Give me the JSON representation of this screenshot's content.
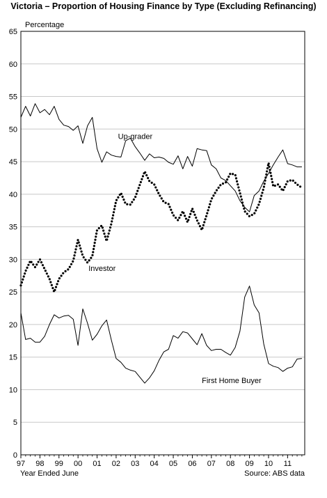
{
  "chart_data": {
    "type": "line",
    "title": "Victoria – Proportion of Housing Finance by Type (Excluding Refinancing)",
    "ylabel": "Percentage",
    "xlabel": "Year Ended June",
    "source": "Source: ABS data",
    "ylim": [
      0,
      65
    ],
    "yticks": [
      0,
      5,
      10,
      15,
      20,
      25,
      30,
      35,
      40,
      45,
      50,
      55,
      60,
      65
    ],
    "xlim": [
      1997,
      2011.9
    ],
    "xticks": [
      {
        "x": 1997,
        "label": "97"
      },
      {
        "x": 1998,
        "label": "98"
      },
      {
        "x": 1999,
        "label": "99"
      },
      {
        "x": 2000,
        "label": "00"
      },
      {
        "x": 2001,
        "label": "01"
      },
      {
        "x": 2002,
        "label": "02"
      },
      {
        "x": 2003,
        "label": "03"
      },
      {
        "x": 2004,
        "label": "04"
      },
      {
        "x": 2005,
        "label": "05"
      },
      {
        "x": 2006,
        "label": "06"
      },
      {
        "x": 2007,
        "label": "07"
      },
      {
        "x": 2008,
        "label": "08"
      },
      {
        "x": 2009,
        "label": "09"
      },
      {
        "x": 2010,
        "label": "10"
      },
      {
        "x": 2011,
        "label": "11"
      }
    ],
    "grid": "horizontal",
    "series": [
      {
        "name": "Up-grader",
        "style": "solid",
        "color": "#000000",
        "x": [
          1997.0,
          1997.25,
          1997.5,
          1997.75,
          1998.0,
          1998.25,
          1998.5,
          1998.75,
          1999.0,
          1999.25,
          1999.5,
          1999.75,
          2000.0,
          2000.25,
          2000.5,
          2000.75,
          2001.0,
          2001.25,
          2001.5,
          2001.75,
          2002.0,
          2002.25,
          2002.5,
          2002.75,
          2003.0,
          2003.25,
          2003.5,
          2003.75,
          2004.0,
          2004.25,
          2004.5,
          2004.75,
          2005.0,
          2005.25,
          2005.5,
          2005.75,
          2006.0,
          2006.25,
          2006.5,
          2006.75,
          2007.0,
          2007.25,
          2007.5,
          2007.75,
          2008.0,
          2008.25,
          2008.5,
          2008.75,
          2009.0,
          2009.25,
          2009.5,
          2009.75,
          2010.0,
          2010.25,
          2010.5,
          2010.75,
          2011.0,
          2011.25,
          2011.5,
          2011.75
        ],
        "values": [
          51.8,
          53.5,
          52.0,
          53.9,
          52.5,
          53.0,
          52.2,
          53.5,
          51.5,
          50.6,
          50.4,
          49.8,
          50.5,
          47.8,
          50.5,
          51.8,
          47.0,
          44.9,
          46.5,
          46.0,
          45.8,
          45.7,
          48.2,
          48.6,
          47.3,
          46.3,
          45.2,
          46.2,
          45.6,
          45.7,
          45.5,
          44.9,
          44.6,
          45.9,
          43.9,
          45.8,
          44.3,
          47.0,
          46.8,
          46.7,
          44.5,
          43.9,
          42.5,
          42.1,
          41.3,
          40.5,
          39.0,
          38.0,
          37.3,
          39.8,
          40.5,
          42.0,
          43.2,
          44.5,
          45.7,
          46.8,
          44.7,
          44.5,
          44.2,
          44.2
        ]
      },
      {
        "name": "Investor",
        "style": "dotted",
        "color": "#000000",
        "x": [
          1997.0,
          1997.25,
          1997.5,
          1997.75,
          1998.0,
          1998.25,
          1998.5,
          1998.75,
          1999.0,
          1999.25,
          1999.5,
          1999.75,
          2000.0,
          2000.25,
          2000.5,
          2000.75,
          2001.0,
          2001.25,
          2001.5,
          2001.75,
          2002.0,
          2002.25,
          2002.5,
          2002.75,
          2003.0,
          2003.25,
          2003.5,
          2003.75,
          2004.0,
          2004.25,
          2004.5,
          2004.75,
          2005.0,
          2005.25,
          2005.5,
          2005.75,
          2006.0,
          2006.25,
          2006.5,
          2006.75,
          2007.0,
          2007.25,
          2007.5,
          2007.75,
          2008.0,
          2008.25,
          2008.5,
          2008.75,
          2009.0,
          2009.25,
          2009.5,
          2009.75,
          2010.0,
          2010.25,
          2010.5,
          2010.75,
          2011.0,
          2011.25,
          2011.5,
          2011.75
        ],
        "values": [
          26.0,
          28.2,
          29.8,
          28.8,
          30.0,
          28.5,
          27.0,
          25.0,
          27.0,
          28.0,
          28.5,
          29.8,
          33.0,
          30.5,
          29.5,
          30.5,
          34.5,
          35.2,
          32.8,
          35.5,
          39.0,
          40.2,
          38.5,
          38.4,
          39.5,
          41.5,
          43.5,
          42.0,
          41.5,
          40.0,
          38.8,
          38.5,
          36.8,
          36.0,
          37.4,
          35.7,
          37.8,
          36.0,
          34.5,
          36.8,
          39.2,
          40.5,
          41.5,
          41.8,
          43.2,
          43.0,
          40.2,
          37.4,
          36.6,
          37.0,
          38.5,
          41.0,
          44.8,
          41.2,
          41.5,
          40.5,
          42.0,
          42.2,
          41.5,
          41.0
        ]
      },
      {
        "name": "First Home Buyer",
        "style": "solid",
        "color": "#000000",
        "x": [
          1997.0,
          1997.25,
          1997.5,
          1997.75,
          1998.0,
          1998.25,
          1998.5,
          1998.75,
          1999.0,
          1999.25,
          1999.5,
          1999.75,
          2000.0,
          2000.25,
          2000.5,
          2000.75,
          2001.0,
          2001.25,
          2001.5,
          2001.75,
          2002.0,
          2002.25,
          2002.5,
          2002.75,
          2003.0,
          2003.25,
          2003.5,
          2003.75,
          2004.0,
          2004.25,
          2004.5,
          2004.75,
          2005.0,
          2005.25,
          2005.5,
          2005.75,
          2006.0,
          2006.25,
          2006.5,
          2006.75,
          2007.0,
          2007.25,
          2007.5,
          2007.75,
          2008.0,
          2008.25,
          2008.5,
          2008.75,
          2009.0,
          2009.25,
          2009.5,
          2009.75,
          2010.0,
          2010.25,
          2010.5,
          2010.75,
          2011.0,
          2011.25,
          2011.5,
          2011.75
        ],
        "values": [
          21.8,
          17.7,
          17.9,
          17.3,
          17.3,
          18.2,
          20.0,
          21.5,
          21.0,
          21.3,
          21.4,
          20.8,
          16.8,
          22.4,
          20.2,
          17.6,
          18.5,
          19.8,
          20.7,
          17.6,
          14.8,
          14.2,
          13.3,
          13.0,
          12.8,
          11.9,
          11.0,
          11.8,
          12.9,
          14.5,
          15.8,
          16.2,
          18.3,
          17.9,
          18.9,
          18.7,
          17.8,
          16.9,
          18.6,
          16.8,
          16.0,
          16.2,
          16.2,
          15.7,
          15.3,
          16.5,
          19.0,
          24.2,
          25.9,
          23.0,
          21.8,
          17.0,
          14.0,
          13.6,
          13.4,
          12.8,
          13.3,
          13.5,
          14.7,
          14.8
        ]
      }
    ],
    "annotations": [
      {
        "text": "Up-grader",
        "x": 2002.1,
        "y": 48.5
      },
      {
        "text": "Investor",
        "x": 2000.55,
        "y": 28.2
      },
      {
        "text": "First Home Buyer",
        "x": 2006.5,
        "y": 11.0
      }
    ]
  }
}
